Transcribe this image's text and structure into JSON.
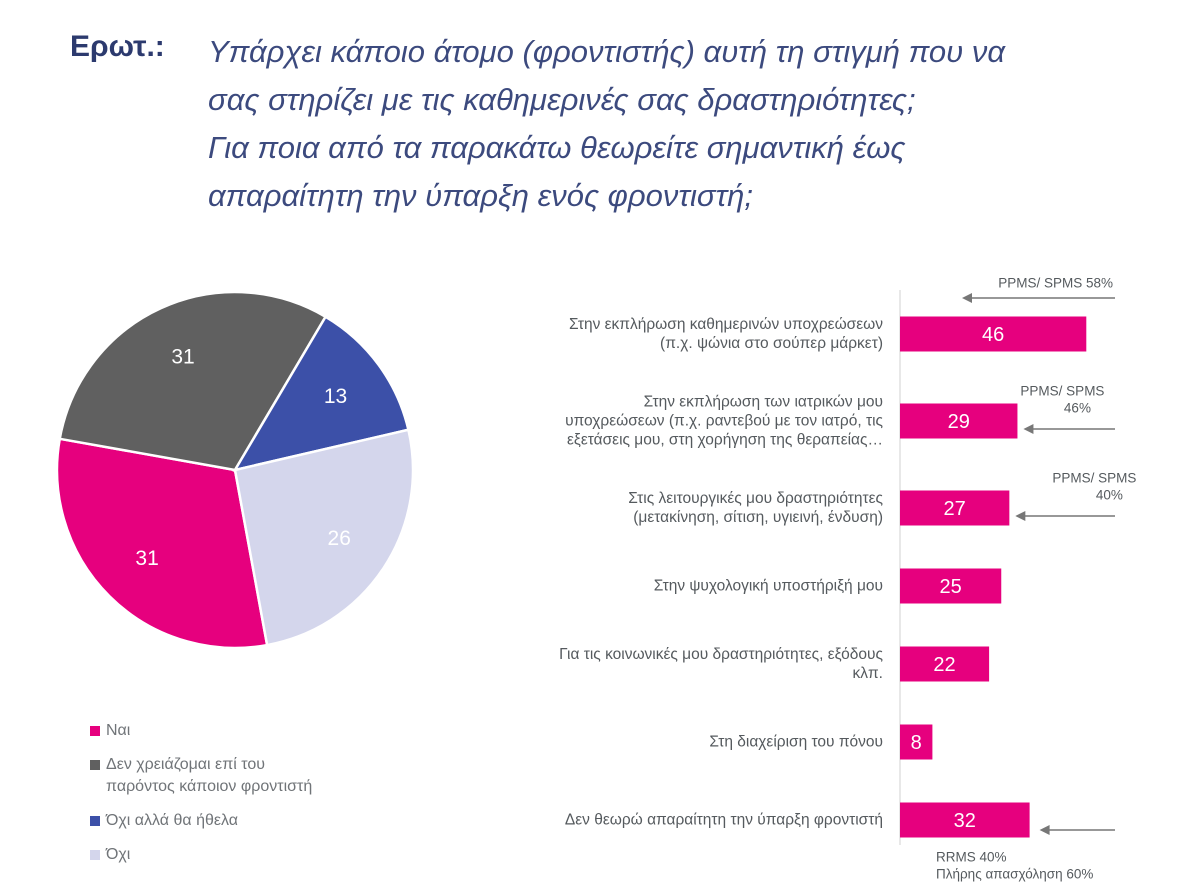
{
  "question": {
    "label": "Ερωτ.:",
    "lines": [
      "Υπάρχει κάποιο άτομο (φροντιστής) αυτή τη στιγμή που να",
      "σας στηρίζει με τις καθημερινές σας δραστηριότητες;",
      "Για ποια από τα παρακάτω θεωρείτε σημαντική έως",
      "απαραίτητη την ύπαρξη ενός φροντιστή;"
    ]
  },
  "chart_data": [
    {
      "type": "pie",
      "categories": [
        "Ναι",
        "Δεν χρειάζομαι επί του παρόντος κάποιον φροντιστή",
        "Όχι αλλά θα ήθελα",
        "Όχι"
      ],
      "values": [
        31,
        31,
        13,
        26
      ],
      "colors": [
        "#e6007e",
        "#606060",
        "#3c50a8",
        "#d4d6ec"
      ],
      "label_colors": [
        "#ffffff",
        "#ffffff",
        "#ffffff",
        "#ffffff"
      ],
      "legend": {
        "placement": "bottom-left",
        "items": [
          {
            "lines": [
              "Ναι"
            ],
            "color": "#e6007e"
          },
          {
            "lines": [
              "Δεν χρειάζομαι επί του",
              "παρόντος κάποιον φροντιστή"
            ],
            "color": "#606060"
          },
          {
            "lines": [
              "Όχι αλλά θα ήθελα"
            ],
            "color": "#3c50a8"
          },
          {
            "lines": [
              "Όχι"
            ],
            "color": "#d4d6ec"
          }
        ]
      }
    },
    {
      "type": "bar",
      "orientation": "horizontal",
      "bar_color": "#e6007e",
      "categories": [
        [
          "Στην εκπλήρωση καθημερινών υποχρεώσεων",
          "(π.χ. ψώνια στο σούπερ μάρκετ)"
        ],
        [
          "Στην εκπλήρωση των ιατρικών μου",
          "υποχρεώσεων (π.χ. ραντεβού με τον ιατρό, τις",
          "εξετάσεις μου, στη χορήγηση της θεραπείας…"
        ],
        [
          "Στις λειτουργικές μου δραστηριότητες",
          "(μετακίνηση, σίτιση, υγιεινή, ένδυση)"
        ],
        [
          "Στην ψυχολογική υποστήριξή μου"
        ],
        [
          "Για τις κοινωνικές μου δραστηριότητες, εξόδους",
          "κλπ."
        ],
        [
          "Στη διαχείριση του πόνου"
        ],
        [
          "Δεν θεωρώ απαραίτητη την ύπαρξη φροντιστή"
        ]
      ],
      "values": [
        46,
        29,
        27,
        25,
        22,
        8,
        32
      ],
      "annotations": [
        {
          "bar": 0,
          "lines": [
            "PPMS/ SPMS 58%"
          ],
          "position": "above"
        },
        {
          "bar": 1,
          "lines": [
            "PPMS/ SPMS",
            "46%"
          ],
          "position": "above"
        },
        {
          "bar": 2,
          "lines": [
            "PPMS/ SPMS",
            "40%"
          ],
          "position": "above"
        },
        {
          "bar": 6,
          "lines": [
            "RRMS 40%",
            "Πλήρης απασχόληση 60%"
          ],
          "position": "below"
        }
      ]
    }
  ]
}
